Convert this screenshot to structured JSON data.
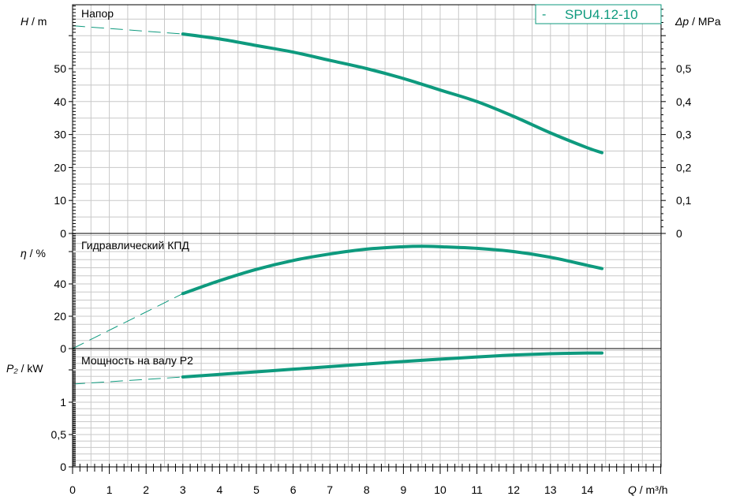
{
  "colors": {
    "curve": "#0e9a7e",
    "legend_border": "#0e9a7e"
  },
  "legend": {
    "marker": "-",
    "label": "SPU4.12-10"
  },
  "x_axis": {
    "var": "Q",
    "unit": " / m³/h",
    "ticks": [
      "0",
      "1",
      "2",
      "3",
      "4",
      "5",
      "6",
      "7",
      "8",
      "9",
      "10",
      "11",
      "12",
      "13",
      "14"
    ]
  },
  "panels": {
    "head": {
      "title": "Напор",
      "ylabel_var": "H",
      "ylabel_unit": " / m",
      "right_var": "Δp",
      "right_unit": " / MPa",
      "ticks": [
        "0",
        "10",
        "20",
        "30",
        "40",
        "50"
      ],
      "right_ticks": [
        "0",
        "0,1",
        "0,2",
        "0,3",
        "0,4",
        "0,5"
      ]
    },
    "eff": {
      "title": "Гидравлический КПД",
      "ylabel_var": "η",
      "ylabel_unit": " / %",
      "ticks": [
        "0",
        "20",
        "40"
      ]
    },
    "power": {
      "title": "Мощность на валу P2",
      "ylabel_var": "P₂",
      "ylabel_unit": " / kW",
      "ticks": [
        "0",
        "0,5",
        "1"
      ]
    }
  },
  "chart_data": [
    {
      "type": "line",
      "title": "Напор",
      "xlabel": "Q / m³/h",
      "ylabel": "H / m",
      "y2label": "Δp / MPa",
      "xlim": [
        0,
        14.5
      ],
      "ylim": [
        0,
        64.5
      ],
      "series": [
        {
          "name": "SPU4.12-10",
          "x": [
            0,
            3,
            4,
            5,
            6,
            7,
            8,
            9,
            10,
            11,
            12,
            13,
            14,
            14.4
          ],
          "y": [
            63,
            60.5,
            59,
            57,
            55,
            52.5,
            50,
            47,
            43.5,
            40,
            35.5,
            30.5,
            26,
            24.5
          ],
          "dashed_until_x": 3
        }
      ]
    },
    {
      "type": "line",
      "title": "Гидравлический КПД",
      "xlabel": "Q / m³/h",
      "ylabel": "η / %",
      "xlim": [
        0,
        14.5
      ],
      "ylim": [
        0,
        65
      ],
      "series": [
        {
          "name": "SPU4.12-10",
          "x": [
            0,
            3,
            4,
            5,
            6,
            7,
            8,
            9,
            9.5,
            10,
            11,
            12,
            13,
            14,
            14.4
          ],
          "y": [
            0,
            34,
            42,
            49,
            54.5,
            58.5,
            61.5,
            63,
            63.3,
            63,
            62,
            60,
            56.5,
            51.5,
            49.5
          ],
          "dashed_until_x": 3
        }
      ]
    },
    {
      "type": "line",
      "title": "Мощность на валу P2",
      "xlabel": "Q / m³/h",
      "ylabel": "P₂ / kW",
      "xlim": [
        0,
        14.5
      ],
      "ylim": [
        0,
        1.88
      ],
      "series": [
        {
          "name": "SPU4.12-10",
          "x": [
            0,
            3,
            5,
            7,
            9,
            11,
            12,
            13,
            14,
            14.4
          ],
          "y": [
            1.28,
            1.39,
            1.47,
            1.55,
            1.63,
            1.7,
            1.73,
            1.75,
            1.76,
            1.76
          ],
          "dashed_until_x": 3
        }
      ]
    }
  ]
}
